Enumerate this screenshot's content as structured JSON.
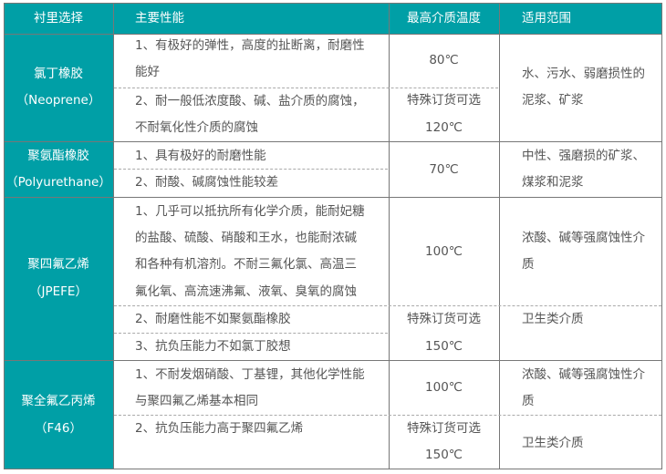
{
  "header": [
    "衬里选择",
    "主要性能",
    "最高介质温度",
    "适用范围"
  ],
  "rows": [
    {
      "lining": [
        "氯丁橡胶",
        "（Neoprene）"
      ],
      "props": [
        "1、有极好的弹性，高度的扯断离，耐磨性",
        "能好",
        "2、耐一般低浓度酸、碱、盐介质的腐蚀，",
        "不耐氧化性介质的腐蚀"
      ],
      "temp": [
        "80℃",
        "特殊订货可选",
        "120℃"
      ],
      "scope": [
        "水、污水、弱磨损性的",
        "泥浆、矿浆"
      ]
    },
    {
      "lining": [
        "聚氨酯橡胶",
        "（Polyurethane）"
      ],
      "props": [
        "1、具有极好的耐磨性能",
        "2、耐酸、碱腐蚀性能较差"
      ],
      "temp": [
        "70℃"
      ],
      "scope": [
        "中性、强磨损的矿浆、",
        "煤浆和泥浆"
      ]
    },
    {
      "lining": [
        "聚四氟乙烯",
        "（JPEFE）"
      ],
      "props": [
        "1、几乎可以抵抗所有化学介质，能耐妃糖",
        "的盐酸、硫酸、硝酸和王水，也能耐浓碱",
        "和各种有机溶剂。不耐三氟化氯、高温三",
        "氟化氧、高流速沸氟、液氧、臭氧的腐蚀",
        "2、耐磨性能不如聚氨酯橡胶",
        "3、抗负压能力不如氯丁胶想"
      ],
      "temp": [
        "100℃",
        "特殊订货可选",
        "150℃"
      ],
      "scope": [
        "浓酸、碱等强腐蚀性介",
        "质",
        "卫生类介质"
      ]
    },
    {
      "lining": [
        "聚全氟乙丙烯",
        "（F46）"
      ],
      "props": [
        "1、不耐发烟硝酸、丁基锂，其他化学性能",
        "与聚四氟乙烯基本相同",
        "2、抗负压能力高于聚四氟乙烯"
      ],
      "temp": [
        "100℃",
        "特殊订货可选",
        "150℃"
      ],
      "scope": [
        "浓酸、碱等强腐蚀性介",
        "质",
        "卫生类介质"
      ]
    }
  ],
  "colors": {
    "header_bg": "#009fa6",
    "header_text": "#ffffff",
    "body_text": "#555555",
    "border": "#777777"
  }
}
